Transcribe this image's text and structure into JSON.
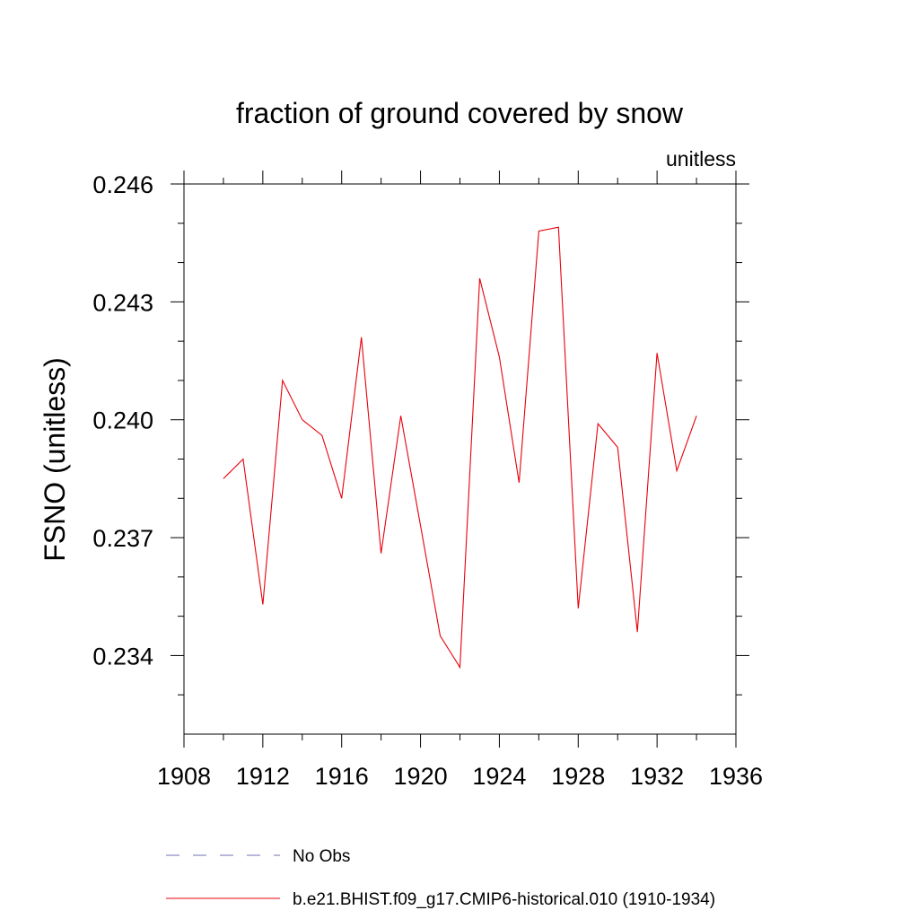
{
  "chart_data": {
    "type": "line",
    "title": "fraction of ground covered by snow",
    "units_label": "unitless",
    "ylabel": "FSNO  (unitless)",
    "xlabel": "",
    "xlim": [
      1908,
      1936
    ],
    "ylim": [
      0.232,
      0.246
    ],
    "x_ticks": [
      1908,
      1912,
      1916,
      1920,
      1924,
      1928,
      1932,
      1936
    ],
    "x_tick_labels": [
      "1908",
      "1912",
      "1916",
      "1920",
      "1924",
      "1928",
      "1932",
      "1936"
    ],
    "x_minor_ticks": [
      1910,
      1914,
      1918,
      1922,
      1926,
      1930,
      1934
    ],
    "y_ticks": [
      0.234,
      0.237,
      0.24,
      0.243,
      0.246
    ],
    "y_tick_labels": [
      "0.234",
      "0.237",
      "0.240",
      "0.243",
      "0.246"
    ],
    "y_minor_ticks": [
      0.233,
      0.235,
      0.236,
      0.238,
      0.239,
      0.241,
      0.242,
      0.244,
      0.245
    ],
    "grid": false,
    "series": [
      {
        "name": "b.e21.BHIST.f09_g17.CMIP6-historical.010 (1910-1934)",
        "color": "#e8000b",
        "style": "solid",
        "x": [
          1910,
          1911,
          1912,
          1913,
          1914,
          1915,
          1916,
          1917,
          1918,
          1919,
          1920,
          1921,
          1922,
          1923,
          1924,
          1925,
          1926,
          1927,
          1928,
          1929,
          1930,
          1931,
          1932,
          1933,
          1934
        ],
        "values": [
          0.2385,
          0.239,
          0.2353,
          0.241,
          0.24,
          0.2396,
          0.238,
          0.2421,
          0.2366,
          0.2401,
          0.2373,
          0.2345,
          0.2337,
          0.2436,
          0.2416,
          0.2384,
          0.2448,
          0.2449,
          0.2352,
          0.2399,
          0.2393,
          0.2346,
          0.2417,
          0.2387,
          0.2401
        ]
      }
    ],
    "legend": [
      {
        "label": "No Obs",
        "color": "#6f6fb5",
        "style": "dashed"
      },
      {
        "label": "b.e21.BHIST.f09_g17.CMIP6-historical.010 (1910-1934)",
        "color": "#e8000b",
        "style": "solid"
      }
    ]
  }
}
